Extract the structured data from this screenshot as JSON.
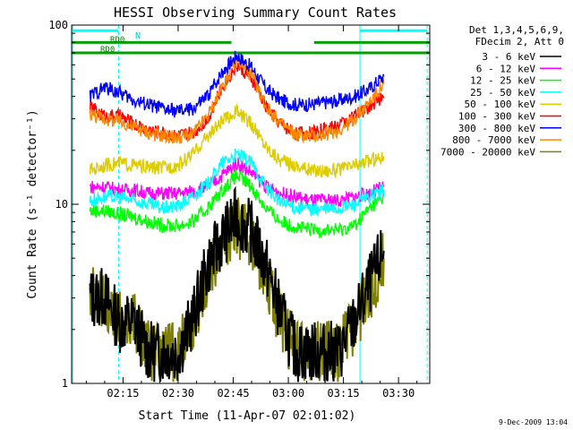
{
  "chart_data": {
    "type": "line",
    "title": "HESSI Observing Summary Count Rates",
    "xlabel": "Start Time (11-Apr-07 02:01:02)",
    "ylabel": "Count Rate (s⁻¹ detector⁻¹)",
    "yscale": "log",
    "ylim": [
      1,
      100
    ],
    "xlim_minutes": [
      121.0,
      218.5
    ],
    "x_ticks": [
      {
        "t": 135,
        "label": "02:15"
      },
      {
        "t": 150,
        "label": "02:30"
      },
      {
        "t": 165,
        "label": "02:45"
      },
      {
        "t": 180,
        "label": "03:00"
      },
      {
        "t": 195,
        "label": "03:15"
      },
      {
        "t": 210,
        "label": "03:30"
      }
    ],
    "y_ticks": [
      {
        "v": 1,
        "label": "1"
      },
      {
        "v": 10,
        "label": "10"
      },
      {
        "v": 100,
        "label": "100"
      }
    ],
    "legend_header": [
      "Det 1,3,4,5,6,9,",
      "FDecim 2, Att 0"
    ],
    "series": [
      {
        "name": "3 - 6 keV",
        "color": "#000000",
        "values": [
          3.0,
          3.0,
          2.2,
          2.2,
          1.5,
          1.5,
          1.5,
          2.3,
          4.5,
          6.5,
          8.5,
          7.0,
          4.5,
          2.4,
          1.5,
          1.5,
          1.5,
          1.5,
          2.2,
          3.5,
          5.5
        ]
      },
      {
        "name": "6 - 12 keV",
        "color": "#ff00ff",
        "values": [
          12.5,
          12.5,
          12.0,
          12.0,
          11.5,
          11.5,
          11.5,
          11.8,
          12.5,
          14.5,
          17.0,
          15.0,
          12.5,
          11.5,
          11.0,
          10.5,
          10.5,
          10.5,
          11.0,
          11.5,
          12.5
        ]
      },
      {
        "name": "12 - 25 keV",
        "color": "#00ff00",
        "values": [
          9.2,
          9.2,
          8.8,
          8.5,
          8.0,
          7.6,
          7.6,
          8.0,
          9.5,
          12.0,
          14.5,
          12.5,
          9.5,
          8.0,
          7.5,
          7.2,
          7.2,
          7.2,
          7.6,
          9.5,
          11.0
        ]
      },
      {
        "name": "25 - 50 keV",
        "color": "#00ffff",
        "values": [
          10.5,
          11.0,
          11.0,
          10.5,
          10.0,
          9.5,
          9.8,
          11.0,
          13.0,
          17.0,
          19.0,
          17.0,
          12.5,
          10.2,
          9.6,
          9.4,
          9.4,
          9.5,
          10.0,
          11.0,
          12.0
        ]
      },
      {
        "name": "50 - 100 keV",
        "color": "#ddcc00",
        "values": [
          15.5,
          16.5,
          17.0,
          16.5,
          16.0,
          16.0,
          16.5,
          19.0,
          24.0,
          29.0,
          33.0,
          28.0,
          21.0,
          17.5,
          16.5,
          15.5,
          15.5,
          15.5,
          16.5,
          17.5,
          18.5
        ]
      },
      {
        "name": "100 - 300 keV",
        "color": "#ff0000",
        "values": [
          35.0,
          31.0,
          31.0,
          28.0,
          26.0,
          25.0,
          24.0,
          25.0,
          30.0,
          45.0,
          60.0,
          50.0,
          35.0,
          28.0,
          25.0,
          25.0,
          26.0,
          28.0,
          31.0,
          35.0,
          40.0
        ]
      },
      {
        "name": "300 - 800 keV",
        "color": "#0000ff",
        "values": [
          40.0,
          45.0,
          42.0,
          38.0,
          36.0,
          34.0,
          33.0,
          34.0,
          40.0,
          55.0,
          68.0,
          58.0,
          44.0,
          38.0,
          36.0,
          36.0,
          37.0,
          38.0,
          40.0,
          44.0,
          52.0
        ]
      },
      {
        "name": "800 - 7000 keV",
        "color": "#ff8800",
        "values": [
          32.0,
          30.0,
          29.0,
          27.0,
          25.0,
          24.0,
          23.5,
          24.5,
          31.0,
          45.0,
          65.0,
          52.0,
          35.0,
          28.0,
          24.5,
          24.0,
          24.5,
          26.0,
          30.0,
          37.0,
          47.0
        ]
      },
      {
        "name": "7000 - 20000 keV",
        "color": "#808000",
        "values": [
          3.0,
          3.0,
          2.2,
          2.2,
          1.5,
          1.5,
          1.5,
          2.2,
          4.0,
          6.0,
          7.5,
          6.5,
          4.0,
          2.2,
          1.5,
          1.5,
          1.5,
          1.5,
          2.2,
          3.2,
          5.0
        ]
      }
    ],
    "series_x_minutes": [
      126,
      130,
      134,
      138,
      142,
      146,
      150,
      154,
      158,
      162,
      166,
      170,
      174,
      178,
      182,
      186,
      190,
      194,
      198,
      202,
      206
    ],
    "rd0_labels": [
      "RD0",
      "RD0"
    ],
    "n_label": "N",
    "timestamp": "9-Dec-2009 13:04",
    "colors": {
      "cyan_markers": "#00ffff",
      "green_bars": "#00a000",
      "background": "#ffffff",
      "frame": "#000000"
    }
  }
}
